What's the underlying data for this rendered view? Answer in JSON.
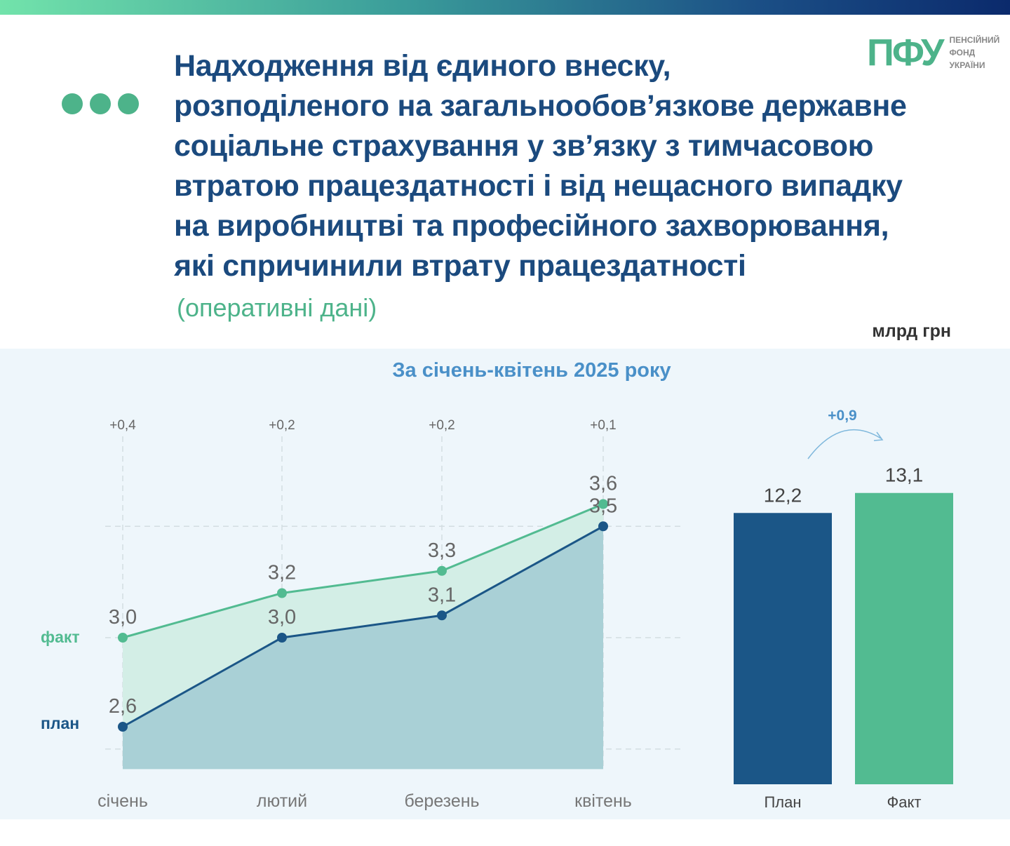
{
  "header": {
    "title_lines": [
      "Надходження від єдиного внеску,",
      "розподіленого на загальнообов’язкове державне",
      "соціальне страхування у зв’язку з тимчасовою",
      "втратою працездатності і від нещасного випадку",
      "на виробництві та професійного захворювання,",
      "які спричинили втрату працездатності"
    ],
    "subtitle": "(оперативні дані)",
    "unit": "млрд грн"
  },
  "logo": {
    "mark": "ПФУ",
    "lines": [
      "ПЕНСІЙНИЙ",
      "ФОНД",
      "УКРАЇНИ"
    ]
  },
  "colors": {
    "plan": "#1b5687",
    "fact": "#52bb91",
    "title": "#1b4a7e"
  },
  "chart_data": [
    {
      "type": "line",
      "title": "За січень-квітень 2025 року",
      "categories": [
        "січень",
        "лютий",
        "березень",
        "квітень"
      ],
      "series": [
        {
          "name": "факт",
          "values": [
            3.0,
            3.2,
            3.3,
            3.6
          ]
        },
        {
          "name": "план",
          "values": [
            2.6,
            3.0,
            3.1,
            3.5
          ]
        }
      ],
      "differences": [
        "+0,4",
        "+0,2",
        "+0,2",
        "+0,1"
      ],
      "ylim": [
        2.41,
        3.8
      ],
      "grid": true
    },
    {
      "type": "bar",
      "categories": [
        "План",
        "Факт"
      ],
      "values": [
        12.2,
        13.1
      ],
      "value_labels": [
        "12,2",
        "13,1"
      ],
      "annotation": "+0,9"
    }
  ]
}
